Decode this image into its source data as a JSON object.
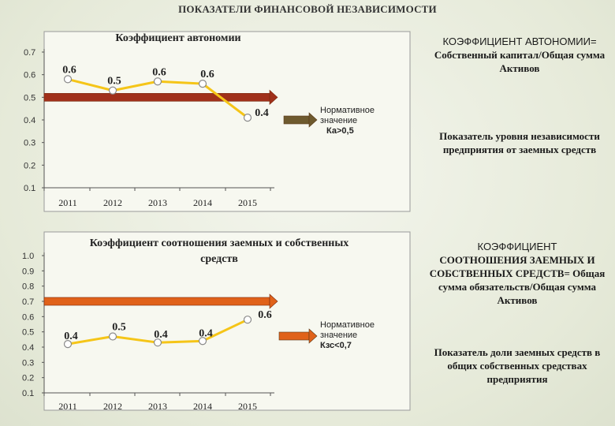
{
  "page": {
    "title": "ПОКАЗАТЕЛИ ФИНАНСОВОЙ НЕЗАВИСИМОСТИ"
  },
  "colors": {
    "line": "#f5c518",
    "marker_fill": "#ffffff",
    "marker_stroke": "#8a8a8a",
    "norm_arrow_1": "#a0301a",
    "norm_arrow_2": "#e0621a",
    "legend_arrow": "#6e5a2e",
    "plot_bg": "#f7f8f0"
  },
  "chart_data": [
    {
      "type": "line",
      "title": "Коэффициент автономии",
      "categories": [
        "2011",
        "2012",
        "2013",
        "2014",
        "2015"
      ],
      "values": [
        0.58,
        0.53,
        0.57,
        0.56,
        0.41
      ],
      "data_labels": [
        "0.6",
        "0.5",
        "0.6",
        "0.6",
        "0.4"
      ],
      "y_ticks": [
        "0.7",
        "0.6",
        "0.5",
        "0.4",
        "0.3",
        "0.2",
        "0.1"
      ],
      "ylim": [
        0.1,
        0.7
      ],
      "grid": false,
      "norm_line": 0.5,
      "norm": {
        "line1": "Нормативное",
        "line2": "значение",
        "value": "Ка>0,5"
      }
    },
    {
      "type": "line",
      "title_line1": "Коэффициент соотношения заемных и собственных",
      "title_line2": "средств",
      "categories": [
        "2011",
        "2012",
        "2013",
        "2014",
        "2015"
      ],
      "values": [
        0.42,
        0.47,
        0.43,
        0.44,
        0.58
      ],
      "data_labels": [
        "0.4",
        "0.5",
        "0.4",
        "0.4",
        "0.6"
      ],
      "y_ticks": [
        "1.0",
        "0.9",
        "0.8",
        "0.7",
        "0.6",
        "0.5",
        "0.4",
        "0.3",
        "0.2",
        "0.1"
      ],
      "ylim": [
        0.1,
        1.0
      ],
      "grid": false,
      "norm_line": 0.7,
      "norm": {
        "line1": "Нормативное",
        "line2": "значение",
        "value": "Кзс<0,7"
      }
    }
  ],
  "side": {
    "box1": {
      "heading": "КОЭФФИЦИЕНТ АВТОНОМИИ=",
      "formula": "Собственный капитал/Общая сумма Активов"
    },
    "note1": "Показатель уровня независимости предприятия от заемных средств",
    "box2": {
      "heading": "КОЭФФИЦИЕНТ",
      "formula": "СООТНОШЕНИЯ ЗАЕМНЫХ И СОБСТВЕННЫХ СРЕДСТВ= Общая сумма обязательств/Общая сумма Активов"
    },
    "note2": "Показатель доли заемных средств в общих собственных средствах предприятия"
  }
}
